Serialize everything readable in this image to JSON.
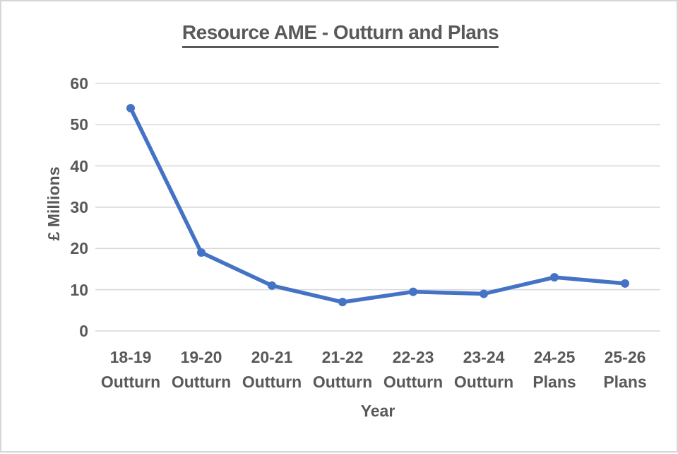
{
  "frame": {
    "background": "#ffffff",
    "border_color": "#d6d6d6"
  },
  "chart_data": {
    "type": "line",
    "title": "Resource AME - Outturn and Plans",
    "xlabel": "Year",
    "ylabel": "£ Millions",
    "categories": [
      {
        "year": "18-19",
        "stage": "Outturn"
      },
      {
        "year": "19-20",
        "stage": "Outturn"
      },
      {
        "year": "20-21",
        "stage": "Outturn"
      },
      {
        "year": "21-22",
        "stage": "Outturn"
      },
      {
        "year": "22-23",
        "stage": "Outturn"
      },
      {
        "year": "23-24",
        "stage": "Outturn"
      },
      {
        "year": "24-25",
        "stage": "Plans"
      },
      {
        "year": "25-26",
        "stage": "Plans"
      }
    ],
    "series": [
      {
        "name": "Resource AME",
        "values": [
          54,
          19,
          11,
          7,
          9.5,
          9,
          13,
          11.5
        ],
        "color": "#4472C4",
        "marker": "circle"
      }
    ],
    "ylim": [
      0,
      60
    ],
    "yticks": [
      0,
      10,
      20,
      30,
      40,
      50,
      60
    ],
    "grid": true,
    "legend": "none",
    "text_color": "#595959",
    "grid_color": "#d9d9d9"
  }
}
